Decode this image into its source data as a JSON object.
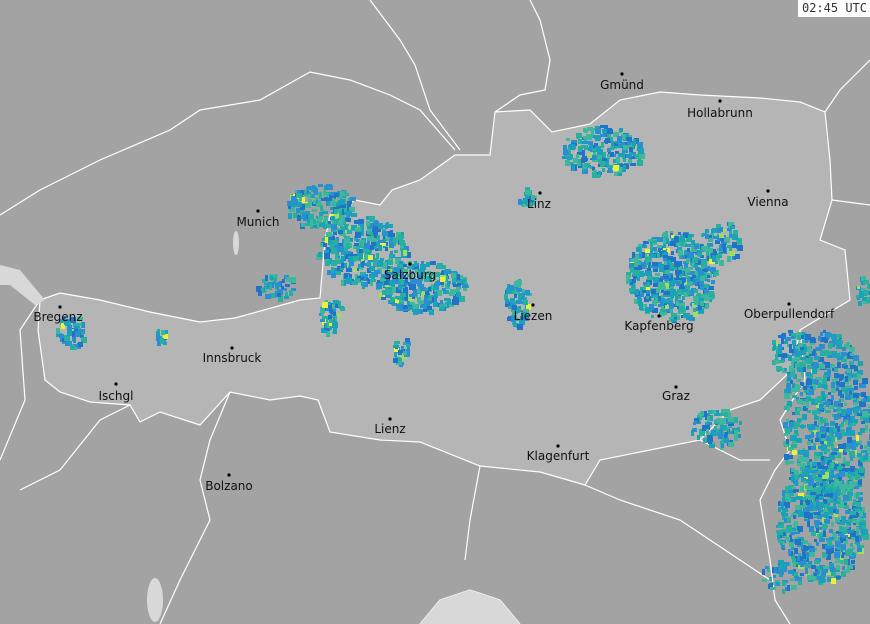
{
  "timestamp": "02:45 UTC",
  "colors": {
    "background": "#a3a3a3",
    "country_fill": "#b5b5b5",
    "borders": "#ffffff",
    "radar_palette": [
      "#1f74c8",
      "#2a8fd0",
      "#1aa3b8",
      "#27b0a0",
      "#3fb79a",
      "#9ee05a",
      "#e8f23a"
    ]
  },
  "cities": [
    {
      "name": "Gmünd"
    },
    {
      "name": "Hollabrunn"
    },
    {
      "name": "Linz"
    },
    {
      "name": "Vienna"
    },
    {
      "name": "Munich"
    },
    {
      "name": "Salzburg"
    },
    {
      "name": "Bregenz"
    },
    {
      "name": "Liezen"
    },
    {
      "name": "Kapfenberg"
    },
    {
      "name": "Oberpullendorf"
    },
    {
      "name": "Innsbruck"
    },
    {
      "name": "Ischgl"
    },
    {
      "name": "Graz"
    },
    {
      "name": "Lienz"
    },
    {
      "name": "Klagenfurt"
    },
    {
      "name": "Bolzano"
    }
  ]
}
